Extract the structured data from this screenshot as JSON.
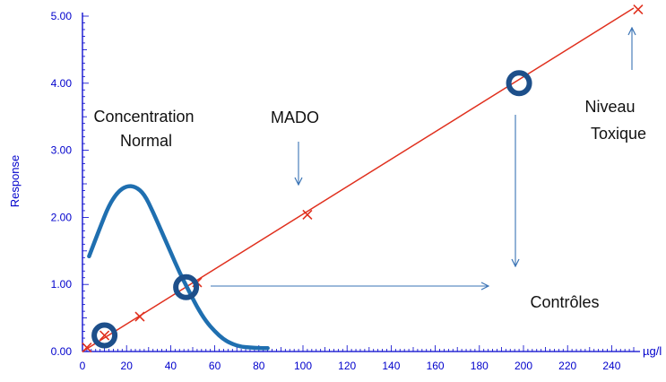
{
  "chart_data": {
    "type": "line",
    "xlabel": "µg/l",
    "ylabel": "Response",
    "xlim": [
      0,
      250
    ],
    "ylim": [
      0,
      5
    ],
    "x_ticks": [
      "0",
      "20",
      "40",
      "60",
      "80",
      "100",
      "120",
      "140",
      "160",
      "180",
      "200",
      "220",
      "240"
    ],
    "y_ticks": [
      "0.00",
      "1.00",
      "2.00",
      "3.00",
      "4.00",
      "5.00"
    ],
    "grid": false,
    "colors": {
      "axis": "#0000cc",
      "calibration": "#e0301e",
      "markers": "#e0301e",
      "distribution": "#1f6fb0",
      "arrows": "#3a73b5",
      "controls": "#1d4f8a"
    },
    "series": [
      {
        "kind": "calibration-line",
        "x": [
          0,
          250
        ],
        "y": [
          0.0,
          5.12
        ]
      },
      {
        "kind": "standards",
        "marker": "x",
        "x": [
          2,
          10,
          26,
          52,
          102,
          252
        ],
        "y": [
          0.06,
          0.24,
          0.52,
          1.03,
          2.04,
          5.1
        ]
      },
      {
        "kind": "normal-distribution",
        "x": [
          3,
          8,
          12,
          16,
          20,
          24,
          28,
          32,
          36,
          40,
          44,
          48,
          52,
          56,
          60,
          64,
          68,
          72,
          76,
          80,
          84
        ],
        "y": [
          1.42,
          1.85,
          2.18,
          2.38,
          2.47,
          2.46,
          2.35,
          2.08,
          1.78,
          1.48,
          1.18,
          0.92,
          0.66,
          0.45,
          0.3,
          0.18,
          0.11,
          0.07,
          0.06,
          0.05,
          0.05
        ]
      },
      {
        "kind": "controls",
        "marker": "ring",
        "x": [
          10,
          47,
          198
        ],
        "y": [
          0.24,
          0.96,
          4.0
        ]
      }
    ],
    "annotations": [
      {
        "id": "concentration",
        "lines": [
          "Concentration",
          "Normal"
        ]
      },
      {
        "id": "mado",
        "lines": [
          "MADO"
        ]
      },
      {
        "id": "toxique",
        "lines": [
          "Niveau",
          "Toxique"
        ]
      },
      {
        "id": "controles",
        "lines": [
          "Contrôles"
        ]
      }
    ]
  }
}
